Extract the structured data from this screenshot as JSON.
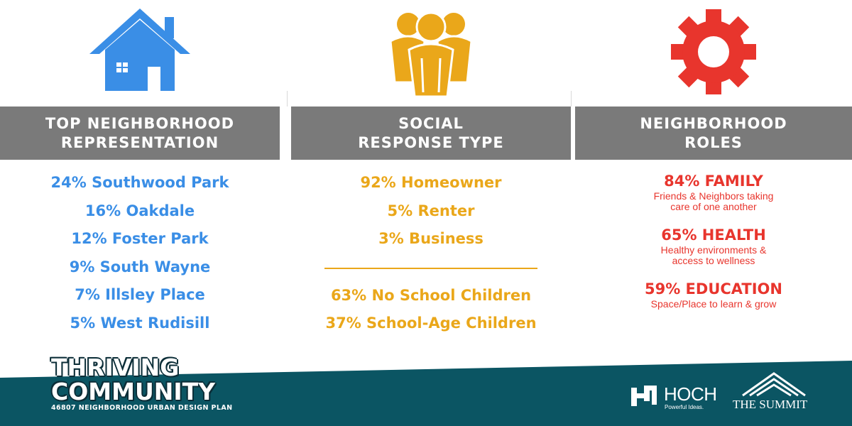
{
  "columns": [
    {
      "heading": [
        "TOP NEIGHBORHOOD",
        "REPRESENTATION"
      ],
      "icon": "house-icon",
      "color": "#3a8ee6",
      "items": [
        "24% Southwood Park",
        "16% Oakdale",
        "12% Foster Park",
        "9% South Wayne",
        "7% Illsley Place",
        "5% West Rudisill"
      ]
    },
    {
      "heading": [
        "SOCIAL",
        "RESPONSE TYPE"
      ],
      "icon": "people-group-icon",
      "color": "#eaa71a",
      "items": [
        "92% Homeowner",
        "5% Renter",
        "3% Business"
      ],
      "items_after_divider": [
        "63% No School Children",
        "37% School-Age Children"
      ]
    },
    {
      "heading": [
        "NEIGHBORHOOD",
        "ROLES"
      ],
      "icon": "gear-icon",
      "color": "#e8352d",
      "roles": [
        {
          "title": "84% FAMILY",
          "desc": [
            "Friends & Neighbors taking",
            "care of one another"
          ]
        },
        {
          "title": "65% HEALTH",
          "desc": [
            "Healthy environments &",
            "access to wellness"
          ]
        },
        {
          "title": "59% EDUCATION",
          "desc": [
            "Space/Place to learn & grow"
          ]
        }
      ]
    }
  ],
  "footer": {
    "brand_line1": "THRIVING",
    "brand_line2": "COMMUNITY",
    "brand_sub": "46807 NEIGHBORHOOD URBAN DESIGN PLAN",
    "partner1_name": "HOCH",
    "partner1_tagline": "Powerful Ideas.",
    "partner1_icon": "hoch-logo-icon",
    "partner2_name": "THE SUMMIT",
    "partner2_icon": "summit-mountain-icon",
    "band_color": "#0b5563"
  }
}
